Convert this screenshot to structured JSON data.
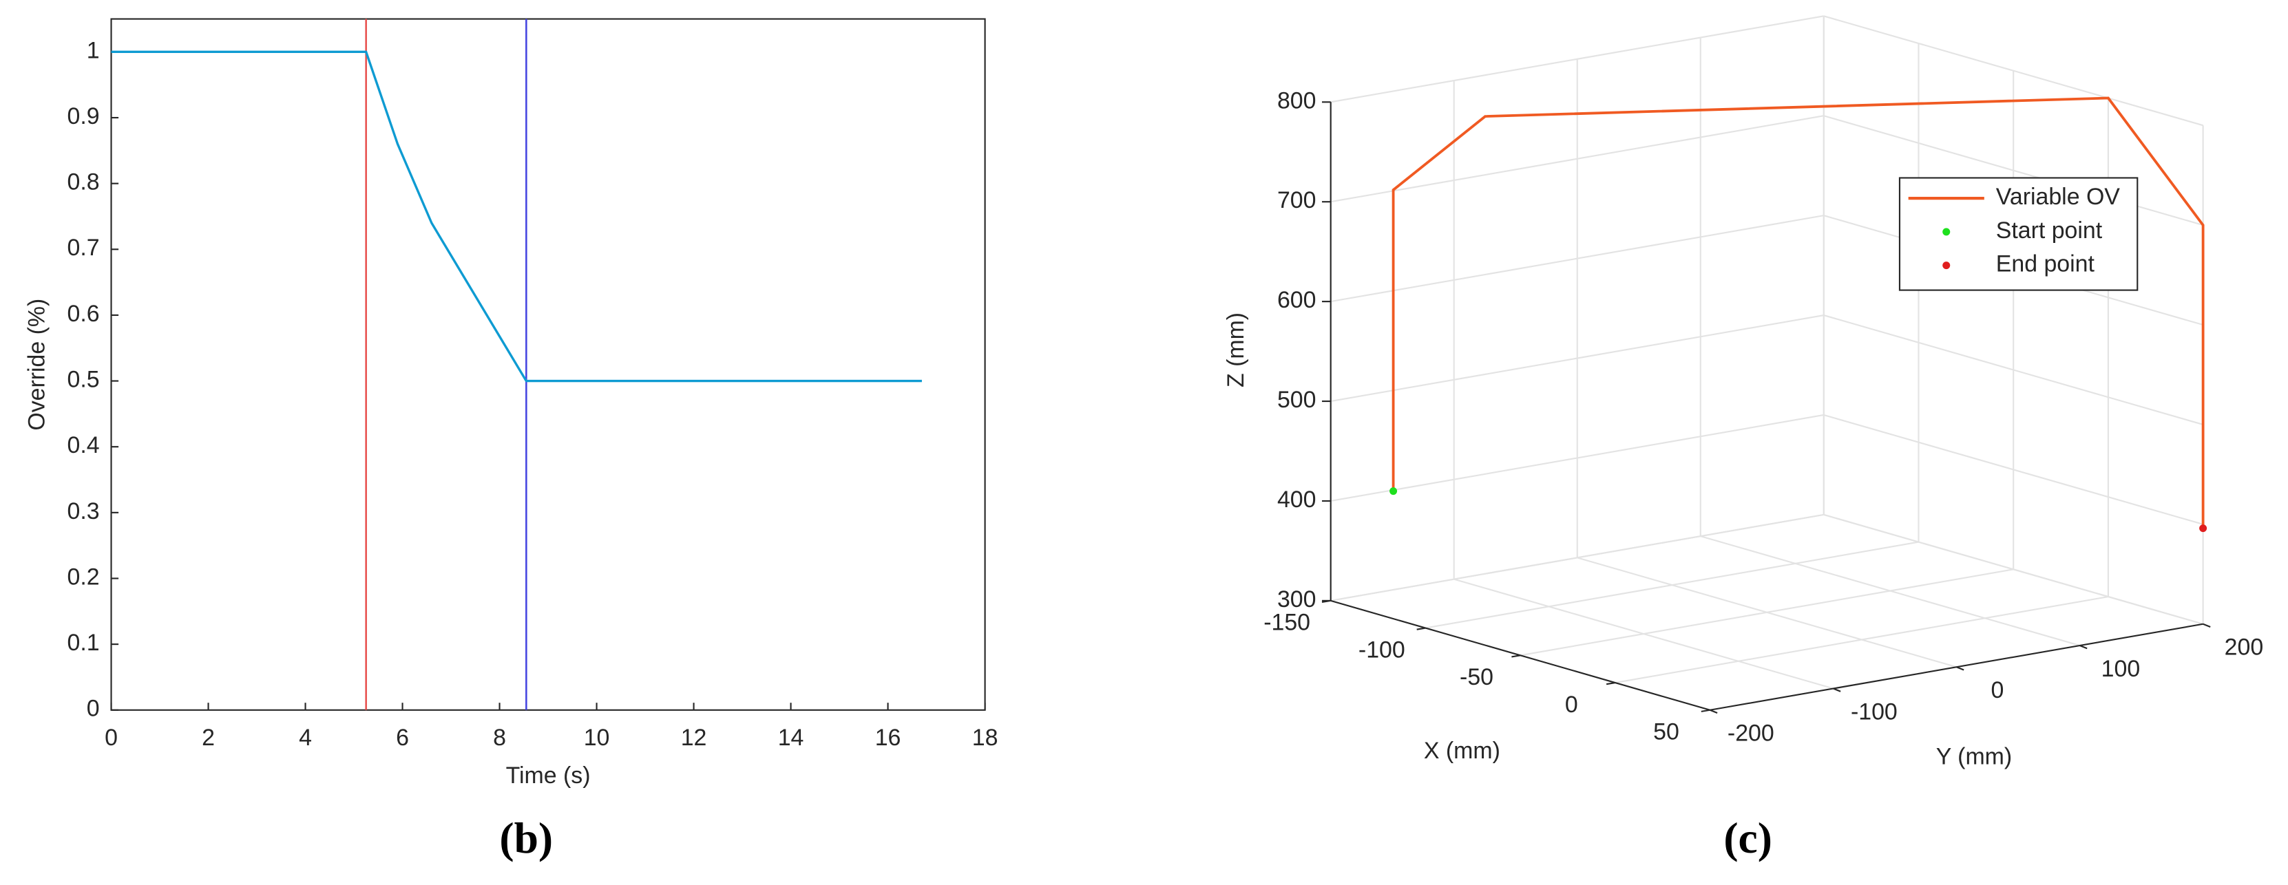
{
  "chart_data": [
    {
      "type": "line",
      "caption": "(b)",
      "x_label": "Time (s)",
      "y_label": "Override (%)",
      "xlim": [
        0,
        18
      ],
      "xticks": [
        0,
        2,
        4,
        6,
        8,
        10,
        12,
        14,
        16,
        18
      ],
      "ylim": [
        0,
        1.05
      ],
      "yticks": [
        0,
        0.1,
        0.2,
        0.3,
        0.4,
        0.5,
        0.6,
        0.7,
        0.8,
        0.9,
        1
      ],
      "series": [
        {
          "color": "#0e9bd2",
          "x": [
            0,
            5.25,
            5.9,
            6.6,
            8.55,
            16.7
          ],
          "values": [
            1,
            1,
            0.86,
            0.74,
            0.5,
            0.5
          ]
        }
      ],
      "vlines": [
        {
          "x": 5.25,
          "color": "#e8504e"
        },
        {
          "x": 8.55,
          "color": "#4444e0"
        }
      ]
    },
    {
      "type": "line3d",
      "caption": "(c)",
      "x_label": "X (mm)",
      "y_label": "Y (mm)",
      "z_label": "Z (mm)",
      "xlim": [
        -150,
        50
      ],
      "xticks": [
        -150,
        -100,
        -50,
        0,
        50
      ],
      "ylim": [
        -200,
        200
      ],
      "yticks": [
        -200,
        -100,
        0,
        100,
        200
      ],
      "zlim": [
        300,
        800
      ],
      "zticks": [
        300,
        400,
        500,
        600,
        700,
        800
      ],
      "grid": true,
      "legend": "upper right",
      "series": [
        {
          "name": "Variable OV",
          "color": "#f05a22",
          "x": [
            -117,
            -117,
            -103,
            0,
            50,
            50
          ],
          "y": [
            -200,
            -200,
            -147,
            200,
            200,
            200
          ],
          "z": [
            428,
            730,
            800,
            800,
            700,
            396
          ]
        },
        {
          "name": "Start point",
          "color": "#1ee01e",
          "x": [
            -117
          ],
          "y": [
            -200
          ],
          "z": [
            428
          ]
        },
        {
          "name": "End point",
          "color": "#e01e1e",
          "x": [
            50
          ],
          "y": [
            200
          ],
          "z": [
            396
          ]
        }
      ]
    }
  ]
}
